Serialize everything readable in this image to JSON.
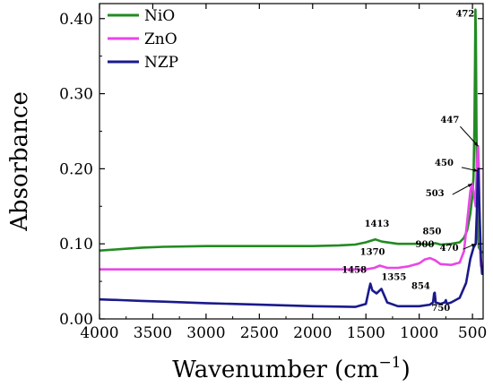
{
  "chart_data": {
    "type": "line",
    "xlabel": "Wavenumber (cm",
    "xlabel_sup": "−1",
    "xlabel_close": ")",
    "ylabel": "Absorbance",
    "xlim": [
      4000,
      400
    ],
    "ylim": [
      0.0,
      0.42
    ],
    "x_ticks": [
      4000,
      3500,
      3000,
      2500,
      2000,
      1500,
      1000,
      500
    ],
    "y_ticks": [
      0.0,
      0.1,
      0.2,
      0.3,
      0.4
    ],
    "x_tick_labels": [
      "4000",
      "3500",
      "3000",
      "2500",
      "2000",
      "1500",
      "1000",
      "500"
    ],
    "y_tick_labels": [
      "0.00",
      "0.10",
      "0.20",
      "0.30",
      "0.40"
    ],
    "legend_position": "top-left",
    "series": [
      {
        "name": "NiO",
        "color": "#228B22",
        "points": [
          [
            4000,
            0.091
          ],
          [
            3800,
            0.093
          ],
          [
            3600,
            0.095
          ],
          [
            3400,
            0.096
          ],
          [
            3000,
            0.097
          ],
          [
            2500,
            0.097
          ],
          [
            2000,
            0.097
          ],
          [
            1750,
            0.098
          ],
          [
            1600,
            0.099
          ],
          [
            1500,
            0.102
          ],
          [
            1413,
            0.106
          ],
          [
            1350,
            0.103
          ],
          [
            1200,
            0.1
          ],
          [
            1000,
            0.1
          ],
          [
            900,
            0.099
          ],
          [
            850,
            0.101
          ],
          [
            800,
            0.099
          ],
          [
            700,
            0.1
          ],
          [
            620,
            0.102
          ],
          [
            580,
            0.108
          ],
          [
            550,
            0.118
          ],
          [
            520,
            0.14
          ],
          [
            500,
            0.165
          ],
          [
            490,
            0.19
          ],
          [
            482,
            0.26
          ],
          [
            476,
            0.35
          ],
          [
            472,
            0.412
          ],
          [
            468,
            0.38
          ],
          [
            462,
            0.25
          ],
          [
            455,
            0.14
          ],
          [
            450,
            0.11
          ],
          [
            440,
            0.095
          ],
          [
            420,
            0.09
          ],
          [
            400,
            0.088
          ]
        ]
      },
      {
        "name": "ZnO",
        "color": "#E846E8",
        "points": [
          [
            4000,
            0.066
          ],
          [
            3500,
            0.066
          ],
          [
            3000,
            0.066
          ],
          [
            2500,
            0.066
          ],
          [
            2000,
            0.066
          ],
          [
            1700,
            0.066
          ],
          [
            1500,
            0.066
          ],
          [
            1420,
            0.068
          ],
          [
            1370,
            0.071
          ],
          [
            1300,
            0.068
          ],
          [
            1200,
            0.068
          ],
          [
            1100,
            0.07
          ],
          [
            1000,
            0.074
          ],
          [
            950,
            0.079
          ],
          [
            900,
            0.081
          ],
          [
            850,
            0.078
          ],
          [
            800,
            0.073
          ],
          [
            700,
            0.072
          ],
          [
            620,
            0.075
          ],
          [
            580,
            0.09
          ],
          [
            550,
            0.13
          ],
          [
            520,
            0.17
          ],
          [
            503,
            0.18
          ],
          [
            490,
            0.17
          ],
          [
            470,
            0.15
          ],
          [
            460,
            0.2
          ],
          [
            450,
            0.228
          ],
          [
            447,
            0.23
          ],
          [
            440,
            0.2
          ],
          [
            430,
            0.1
          ],
          [
            420,
            0.07
          ],
          [
            400,
            0.066
          ]
        ]
      },
      {
        "name": "NZP",
        "color": "#1A1A8C",
        "points": [
          [
            4000,
            0.026
          ],
          [
            3800,
            0.025
          ],
          [
            3600,
            0.024
          ],
          [
            3400,
            0.023
          ],
          [
            3000,
            0.021
          ],
          [
            2500,
            0.019
          ],
          [
            2000,
            0.017
          ],
          [
            1600,
            0.016
          ],
          [
            1500,
            0.02
          ],
          [
            1470,
            0.04
          ],
          [
            1458,
            0.047
          ],
          [
            1440,
            0.038
          ],
          [
            1400,
            0.034
          ],
          [
            1370,
            0.038
          ],
          [
            1355,
            0.04
          ],
          [
            1330,
            0.032
          ],
          [
            1300,
            0.022
          ],
          [
            1200,
            0.017
          ],
          [
            1000,
            0.017
          ],
          [
            900,
            0.019
          ],
          [
            870,
            0.022
          ],
          [
            860,
            0.034
          ],
          [
            854,
            0.035
          ],
          [
            845,
            0.022
          ],
          [
            800,
            0.02
          ],
          [
            760,
            0.022
          ],
          [
            750,
            0.025
          ],
          [
            740,
            0.02
          ],
          [
            700,
            0.022
          ],
          [
            620,
            0.028
          ],
          [
            560,
            0.048
          ],
          [
            520,
            0.08
          ],
          [
            490,
            0.095
          ],
          [
            470,
            0.1
          ],
          [
            460,
            0.14
          ],
          [
            450,
            0.197
          ],
          [
            445,
            0.2
          ],
          [
            435,
            0.15
          ],
          [
            420,
            0.08
          ],
          [
            410,
            0.06
          ],
          [
            400,
            0.06
          ]
        ]
      }
    ],
    "annotations": [
      {
        "text": "472",
        "x": 472,
        "y": 0.412
      },
      {
        "text": "447",
        "x": 447,
        "y": 0.23
      },
      {
        "text": "450",
        "x": 450,
        "y": 0.197
      },
      {
        "text": "503",
        "x": 503,
        "y": 0.18
      },
      {
        "text": "470",
        "x": 470,
        "y": 0.1
      },
      {
        "text": "1413",
        "x": 1413,
        "y": 0.106
      },
      {
        "text": "850",
        "x": 850,
        "y": 0.101
      },
      {
        "text": "1370",
        "x": 1370,
        "y": 0.071
      },
      {
        "text": "900",
        "x": 900,
        "y": 0.081
      },
      {
        "text": "1458",
        "x": 1458,
        "y": 0.047
      },
      {
        "text": "1355",
        "x": 1355,
        "y": 0.04
      },
      {
        "text": "854",
        "x": 854,
        "y": 0.035
      },
      {
        "text": "750",
        "x": 750,
        "y": 0.025
      }
    ]
  }
}
